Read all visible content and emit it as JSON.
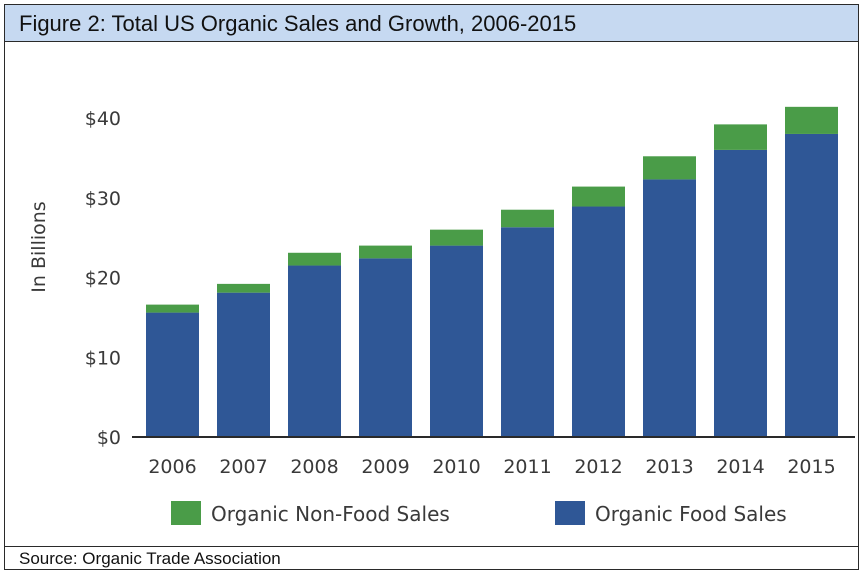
{
  "title": "Figure 2: Total US Organic Sales and Growth, 2006-2015",
  "source": "Source: Organic Trade Association",
  "colors": {
    "food": "#2f5796",
    "non_food": "#4a9c48",
    "title_bar": "#c6d9f1"
  },
  "chart_data": {
    "type": "bar",
    "stacked": true,
    "title": "",
    "xlabel": "",
    "ylabel": "In Billions",
    "ylim": [
      0,
      40
    ],
    "y_ticks": [
      "$0",
      "$10",
      "$20",
      "$30",
      "$40"
    ],
    "categories": [
      "2006",
      "2007",
      "2008",
      "2009",
      "2010",
      "2011",
      "2012",
      "2013",
      "2014",
      "2015"
    ],
    "series": [
      {
        "name": "Organic Food Sales",
        "values": [
          15.6,
          18.1,
          21.5,
          22.4,
          24.0,
          26.3,
          28.9,
          32.3,
          36.0,
          38.0
        ]
      },
      {
        "name": "Organic Non-Food Sales",
        "values": [
          1.0,
          1.1,
          1.6,
          1.6,
          2.0,
          2.2,
          2.5,
          2.9,
          3.2,
          3.4
        ]
      }
    ],
    "legend": {
      "position": "bottom",
      "order": [
        "Organic Non-Food Sales",
        "Organic Food Sales"
      ]
    },
    "grid": false
  }
}
